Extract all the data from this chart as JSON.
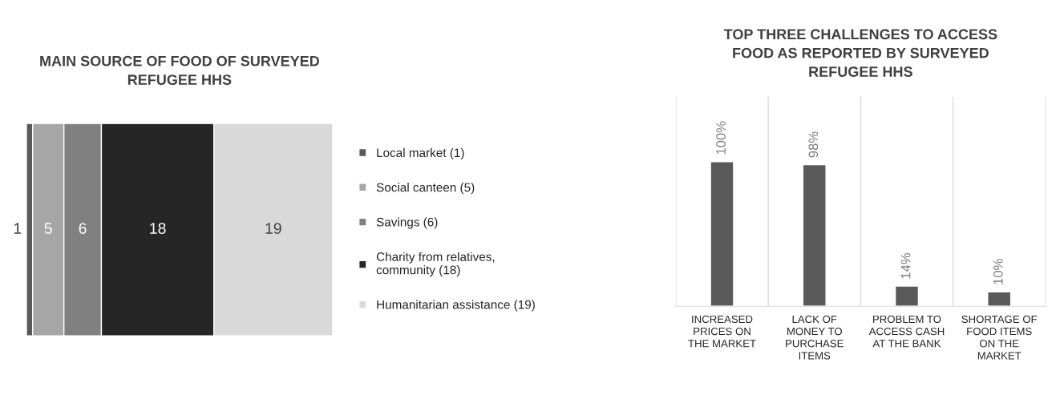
{
  "chart_data": [
    {
      "type": "bar",
      "title": "MAIN SOURCE OF FOOD OF SURVEYED REFUGEE HHS",
      "orientation": "horizontal",
      "stacked": true,
      "categories": [
        null
      ],
      "data_labels": true,
      "legend": "right",
      "tick_labels": false,
      "series": [
        {
          "name": "Local market (1)",
          "color": "#595959",
          "values": [
            1
          ]
        },
        {
          "name": "Social canteen (5)",
          "color": "#a6a6a6",
          "values": [
            5
          ]
        },
        {
          "name": "Savings (6)",
          "color": "#808080",
          "values": [
            6
          ]
        },
        {
          "name": "Charity from relatives, community (18)",
          "color": "#262626",
          "values": [
            18
          ]
        },
        {
          "name": "Humanitarian assistance (19)",
          "color": "#d9d9d9",
          "values": [
            19
          ]
        }
      ]
    },
    {
      "type": "bar",
      "title": "TOP THREE CHALLENGES TO ACCESS FOOD AS REPORTED BY SURVEYED REFUGEE HHS",
      "categories": [
        "INCREASED PRICES ON THE MARKET",
        "LACK OF MONEY TO PURCHASE ITEMS",
        "PROBLEM TO ACCESS CASH AT THE BANK",
        "SHORTAGE OF FOOD ITEMS ON THE MARKET"
      ],
      "values": [
        100,
        98,
        14,
        10
      ],
      "value_labels": [
        "100%",
        "98%",
        "14%",
        "10%"
      ],
      "color": "#595959",
      "grid": "x",
      "tick_labels": "x"
    }
  ]
}
